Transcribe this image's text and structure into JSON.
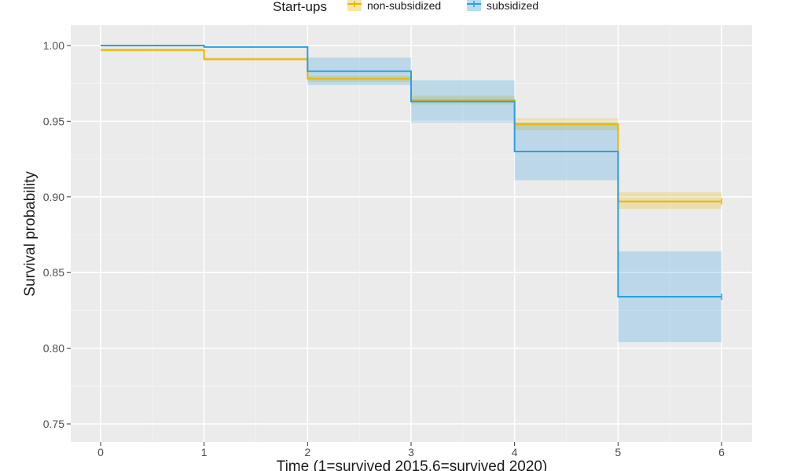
{
  "chart_data": {
    "type": "line",
    "subtype": "step",
    "title": "",
    "xlabel": "Time (1=survived 2015,6=survived 2020)",
    "ylabel": "Survival probability",
    "xlim": [
      0,
      6
    ],
    "ylim": [
      0.75,
      1.0
    ],
    "xticks": [
      "0",
      "1",
      "2",
      "3",
      "4",
      "5",
      "6"
    ],
    "yticks": [
      "0.75",
      "0.80",
      "0.85",
      "0.90",
      "0.95",
      "1.00"
    ],
    "grid": true,
    "legend": {
      "title": "Start-ups",
      "position": "top",
      "entries": [
        "non-subsidized",
        "subsidized"
      ]
    },
    "series": [
      {
        "name": "non-subsidized",
        "color": "#e7b800",
        "x": [
          0,
          1,
          2,
          3,
          4,
          5,
          6
        ],
        "values": [
          0.997,
          0.991,
          0.978,
          0.964,
          0.948,
          0.897,
          0.897
        ],
        "lower": [
          0.996,
          0.99,
          0.976,
          0.961,
          0.944,
          0.892,
          0.892
        ],
        "upper": [
          0.998,
          0.992,
          0.98,
          0.967,
          0.952,
          0.903,
          0.903
        ]
      },
      {
        "name": "subsidized",
        "color": "#2e9fdf",
        "x": [
          0,
          1,
          2,
          3,
          4,
          5,
          6
        ],
        "values": [
          1.0,
          0.999,
          0.983,
          0.963,
          0.93,
          0.834,
          0.834
        ],
        "lower": [
          1.0,
          0.999,
          0.974,
          0.949,
          0.911,
          0.804,
          0.804
        ],
        "upper": [
          1.0,
          0.999,
          0.992,
          0.977,
          0.949,
          0.864,
          0.864
        ]
      }
    ]
  }
}
